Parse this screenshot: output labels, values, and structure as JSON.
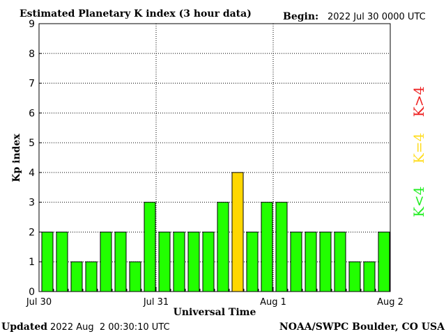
{
  "chart_data": {
    "type": "bar",
    "title": "Estimated Planetary K index (3 hour data)",
    "begin_label": "Begin:",
    "begin_value": "2022 Jul 30 0000 UTC",
    "xlabel": "Universal Time",
    "ylabel": "Kp index",
    "ylim": [
      0,
      9
    ],
    "yticks": [
      "0",
      "1",
      "2",
      "3",
      "4",
      "5",
      "6",
      "7",
      "8",
      "9"
    ],
    "x_date_labels": [
      "Jul 30",
      "Jul 31",
      "Aug 1",
      "Aug 2"
    ],
    "values": [
      2,
      2,
      1,
      1,
      2,
      2,
      1,
      3,
      2,
      2,
      2,
      2,
      3,
      4,
      2,
      3,
      3,
      2,
      2,
      2,
      2,
      1,
      1,
      2
    ],
    "grid": "dotted",
    "legend": [
      {
        "label": "K<4",
        "color": "#22ee22"
      },
      {
        "label": "K=4",
        "color": "#ffdd22"
      },
      {
        "label": "K>4",
        "color": "#ee2222"
      }
    ],
    "colors": {
      "low": "#22ff00",
      "moderate": "#ffd700",
      "high": "#ff0000",
      "bar_outline": "#000000"
    }
  },
  "footer": {
    "updated_label": "Updated",
    "updated_value": "2022 Aug  2 00:30:10 UTC",
    "credit": "NOAA/SWPC Boulder, CO USA"
  }
}
